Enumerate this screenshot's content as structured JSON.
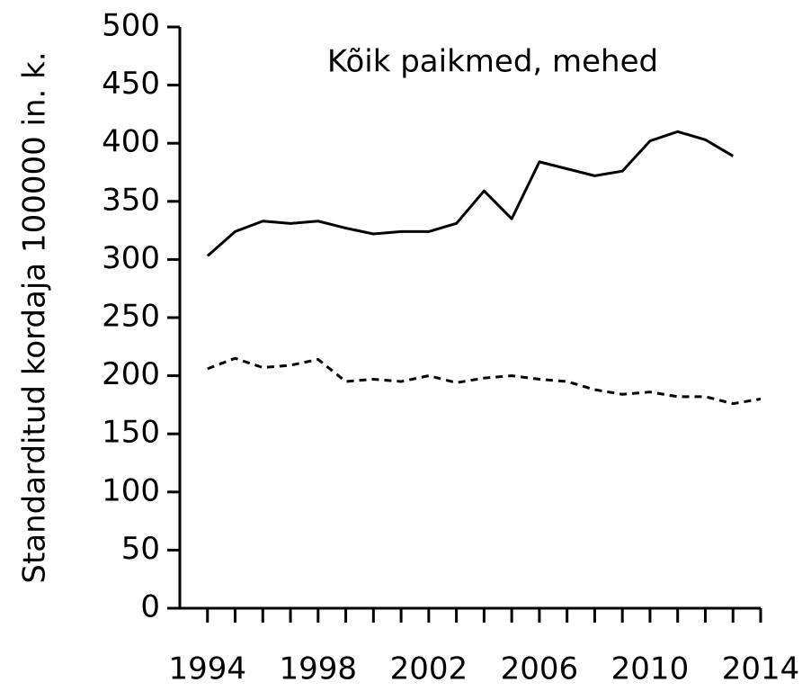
{
  "chart_data": {
    "type": "line",
    "title": "Kõik paikmed, mehed",
    "y_label": "Standarditud kordaja 100000 in. k.",
    "x": [
      1994,
      1995,
      1996,
      1997,
      1998,
      1999,
      2000,
      2001,
      2002,
      2003,
      2004,
      2005,
      2006,
      2007,
      2008,
      2009,
      2010,
      2011,
      2012,
      2013,
      2014
    ],
    "series": [
      {
        "color": "#000000",
        "dashed": false,
        "values": [
          303,
          324,
          333,
          331,
          333,
          327,
          322,
          324,
          324,
          331,
          359,
          335,
          384,
          378,
          372,
          376,
          402,
          410,
          403,
          389,
          null
        ]
      },
      {
        "color": "#000000",
        "dashed": true,
        "values": [
          206,
          215,
          207,
          209,
          214,
          195,
          197,
          195,
          200,
          194,
          198,
          200,
          197,
          195,
          188,
          184,
          186,
          182,
          182,
          176,
          180
        ]
      }
    ],
    "xlim": [
      1993,
      2014
    ],
    "xticks": [
      1994,
      1998,
      2002,
      2006,
      2010,
      2014
    ],
    "xticks_minor": [
      1994,
      1995,
      1996,
      1997,
      1998,
      1999,
      2000,
      2001,
      2002,
      2003,
      2004,
      2005,
      2006,
      2007,
      2008,
      2009,
      2010,
      2011,
      2012,
      2013,
      2014
    ],
    "ylim": [
      0,
      500
    ],
    "yticks": [
      0,
      50,
      100,
      150,
      200,
      250,
      300,
      350,
      400,
      450,
      500
    ]
  }
}
